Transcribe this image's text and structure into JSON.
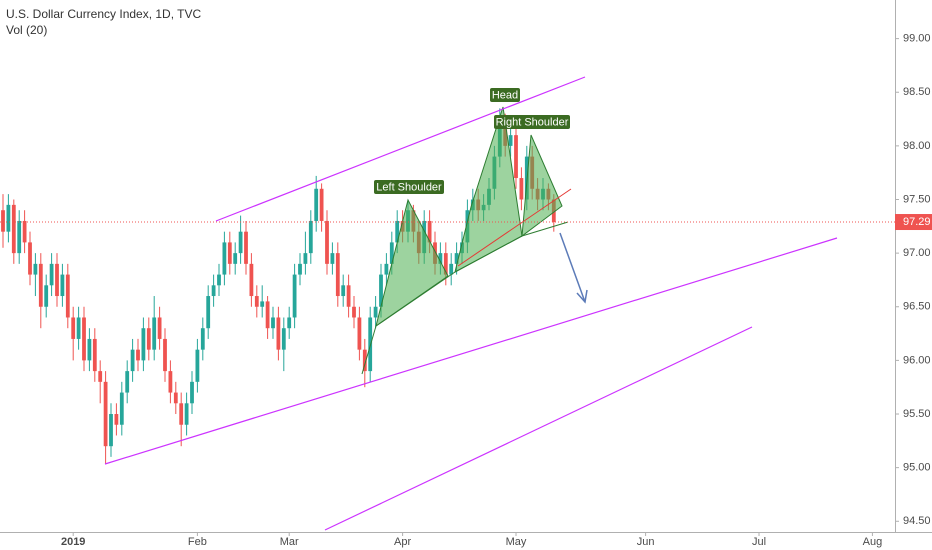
{
  "chart_data": {
    "type": "candlestick",
    "title": "U.S. Dollar Currency Index, 1D, TVC",
    "subtitle": "Vol (20)",
    "up_color": "#26a69a",
    "down_color": "#ef5350",
    "grid": false,
    "ylim": [
      94.4,
      99.36
    ],
    "yticks": [
      {
        "value": 94.5,
        "label": "94.50"
      },
      {
        "value": 95,
        "label": "95.00"
      },
      {
        "value": 95.5,
        "label": "95.50"
      },
      {
        "value": 96,
        "label": "96.00"
      },
      {
        "value": 96.5,
        "label": "96.50"
      },
      {
        "value": 97,
        "label": "97.00"
      },
      {
        "value": 97.5,
        "label": "97.50"
      },
      {
        "value": 98,
        "label": "98.00"
      },
      {
        "value": 98.5,
        "label": "98.50"
      },
      {
        "value": 99,
        "label": "99.00"
      }
    ],
    "last_price": 97.29,
    "annotations": [
      "Left Shoulder",
      "Head",
      "Right Shoulder"
    ],
    "categories": [
      null,
      null,
      null,
      null,
      null,
      null,
      null,
      null,
      null,
      null,
      null,
      null,
      null,
      "2019",
      null,
      null,
      null,
      null,
      null,
      null,
      null,
      null,
      null,
      null,
      null,
      null,
      null,
      null,
      null,
      null,
      null,
      null,
      null,
      null,
      null,
      null,
      "Feb",
      null,
      null,
      null,
      null,
      null,
      null,
      null,
      null,
      null,
      null,
      null,
      null,
      null,
      null,
      null,
      null,
      "Mar",
      null,
      null,
      null,
      null,
      null,
      null,
      null,
      null,
      null,
      null,
      null,
      null,
      null,
      null,
      null,
      null,
      null,
      null,
      null,
      null,
      "Apr",
      null,
      null,
      null,
      null,
      null,
      null,
      null,
      null,
      null,
      null,
      null,
      null,
      null,
      null,
      null,
      null,
      null,
      null,
      null,
      null,
      "May",
      null,
      null,
      null,
      null,
      null,
      null,
      null,
      null,
      null,
      null,
      null,
      null,
      null,
      null,
      null,
      null,
      null,
      null,
      null,
      null,
      null,
      null,
      null,
      "Jun",
      null,
      null,
      null,
      null,
      null,
      null,
      null,
      null,
      null,
      null,
      null,
      null,
      null,
      null,
      null,
      null,
      null,
      null,
      null,
      null,
      "Jul",
      null,
      null,
      null,
      null,
      null,
      null,
      null,
      null,
      null,
      null,
      null,
      null,
      null,
      null,
      null,
      null,
      null,
      null,
      null,
      null,
      "Aug",
      null,
      null,
      null
    ],
    "open": [
      97.4,
      97.2,
      97.45,
      97,
      97.3,
      97.1,
      96.8,
      96.9,
      96.5,
      96.7,
      96.9,
      96.6,
      96.8,
      96.4,
      96.2,
      96.4,
      96,
      96.2,
      95.9,
      95.8,
      95.2,
      95.5,
      95.4,
      95.7,
      95.9,
      96.1,
      96,
      96.3,
      96.1,
      96.4,
      96.2,
      95.9,
      95.7,
      95.6,
      95.4,
      95.6,
      95.8,
      96.1,
      96.3,
      96.6,
      96.7,
      96.8,
      97.1,
      96.9,
      97,
      97.2,
      96.9,
      96.6,
      96.5,
      96.55,
      96.3,
      96.4,
      96.1,
      96.3,
      96.4,
      96.8,
      96.9,
      97,
      97.3,
      97.6,
      97.3,
      96.9,
      97,
      96.6,
      96.7,
      96.5,
      96.4,
      96.1,
      95.9,
      96.4,
      96.5,
      96.8,
      96.9,
      97.1,
      97.3,
      97.2,
      97.4,
      97.2,
      97,
      97.3,
      97.1,
      96.9,
      97,
      96.8,
      96.9,
      97,
      97.1,
      97.4,
      97.5,
      97.4,
      97.45,
      97.6,
      97.9,
      98.2,
      98,
      98.1,
      97.7,
      97.5,
      97.9,
      97.6,
      97.5,
      97.6,
      97.5,
      null,
      null,
      null,
      null,
      null,
      null,
      null,
      null,
      null,
      null,
      null,
      null,
      null,
      null,
      null,
      null,
      null,
      null,
      null,
      null,
      null,
      null,
      null,
      null,
      null,
      null,
      null,
      null,
      null,
      null,
      null,
      null,
      null,
      null,
      null,
      null,
      null,
      null,
      null,
      null,
      null,
      null,
      null,
      null,
      null,
      null,
      null,
      null,
      null,
      null,
      null,
      null,
      null,
      null,
      null,
      null,
      null,
      null,
      null,
      null,
      null,
      null
    ],
    "high": [
      97.55,
      97.55,
      97.5,
      97.4,
      97.4,
      97.2,
      97,
      97,
      96.8,
      97,
      97,
      96.9,
      96.9,
      96.5,
      96.5,
      96.5,
      96.3,
      96.3,
      96,
      95.9,
      95.6,
      95.6,
      95.8,
      96,
      96.2,
      96.2,
      96.4,
      96.4,
      96.6,
      96.5,
      96.3,
      96,
      95.8,
      95.7,
      95.7,
      95.9,
      96.2,
      96.4,
      96.7,
      96.8,
      96.9,
      97.2,
      97.2,
      97.1,
      97.35,
      97.3,
      97,
      96.7,
      96.7,
      96.6,
      96.5,
      96.5,
      96.4,
      96.5,
      96.9,
      97,
      97.2,
      97.4,
      97.72,
      97.65,
      97.4,
      97.1,
      97.1,
      96.8,
      96.8,
      96.6,
      96.5,
      96.2,
      96.5,
      96.6,
      96.9,
      97,
      97.2,
      97.4,
      97.4,
      97.5,
      97.45,
      97.3,
      97.4,
      97.4,
      97.2,
      97.1,
      97.1,
      97,
      97.1,
      97.2,
      97.5,
      97.6,
      97.6,
      97.55,
      97.7,
      98,
      98.35,
      98.3,
      98.2,
      98.2,
      97.8,
      98,
      98,
      97.7,
      97.7,
      97.65,
      97.55,
      null,
      null,
      null,
      null,
      null,
      null,
      null,
      null,
      null,
      null,
      null,
      null,
      null,
      null,
      null,
      null,
      null,
      null,
      null,
      null,
      null,
      null,
      null,
      null,
      null,
      null,
      null,
      null,
      null,
      null,
      null,
      null,
      null,
      null,
      null,
      null,
      null,
      null,
      null,
      null,
      null,
      null,
      null,
      null,
      null,
      null,
      null,
      null,
      null,
      null,
      null,
      null,
      null,
      null,
      null,
      null,
      null,
      null,
      null,
      null,
      null,
      null
    ],
    "low": [
      97.05,
      97.1,
      96.9,
      96.9,
      97,
      96.7,
      96.6,
      96.3,
      96.4,
      96.6,
      96.5,
      96.5,
      96.3,
      96,
      96.1,
      95.9,
      95.9,
      95.8,
      95.6,
      95.03,
      95.1,
      95.3,
      95.3,
      95.6,
      95.8,
      95.9,
      95.9,
      96,
      96,
      96.1,
      95.8,
      95.6,
      95.5,
      95.2,
      95.3,
      95.5,
      95.7,
      96,
      96.2,
      96.5,
      96.6,
      96.7,
      96.8,
      96.8,
      96.9,
      96.8,
      96.5,
      96.4,
      96.4,
      96.2,
      96.2,
      96,
      95.9,
      96.2,
      96.3,
      96.7,
      96.8,
      96.9,
      97.2,
      97.2,
      96.8,
      96.8,
      96.5,
      96.5,
      96.4,
      96.3,
      96,
      95.75,
      95.8,
      96.3,
      96.4,
      96.7,
      96.8,
      97,
      97.1,
      97.1,
      97.1,
      96.9,
      96.9,
      97,
      96.8,
      96.8,
      96.7,
      96.7,
      96.8,
      96.9,
      97,
      97.3,
      97.3,
      97.3,
      97.4,
      97.5,
      97.8,
      97.9,
      97.9,
      97.6,
      97.4,
      97.4,
      97.5,
      97.4,
      97.4,
      97.4,
      97.2,
      null,
      null,
      null,
      null,
      null,
      null,
      null,
      null,
      null,
      null,
      null,
      null,
      null,
      null,
      null,
      null,
      null,
      null,
      null,
      null,
      null,
      null,
      null,
      null,
      null,
      null,
      null,
      null,
      null,
      null,
      null,
      null,
      null,
      null,
      null,
      null,
      null,
      null,
      null,
      null,
      null,
      null,
      null,
      null,
      null,
      null,
      null,
      null,
      null,
      null,
      null,
      null,
      null,
      null,
      null,
      null,
      null,
      null,
      null,
      null,
      null,
      null
    ],
    "close": [
      97.2,
      97.45,
      97,
      97.3,
      97.1,
      96.8,
      96.9,
      96.5,
      96.7,
      96.9,
      96.6,
      96.8,
      96.4,
      96.2,
      96.4,
      96,
      96.2,
      95.9,
      95.8,
      95.2,
      95.5,
      95.4,
      95.7,
      95.9,
      96.1,
      96,
      96.3,
      96.1,
      96.4,
      96.2,
      95.9,
      95.7,
      95.6,
      95.4,
      95.6,
      95.8,
      96.1,
      96.3,
      96.6,
      96.7,
      96.8,
      97.1,
      96.9,
      97,
      97.2,
      96.9,
      96.6,
      96.5,
      96.55,
      96.3,
      96.4,
      96.1,
      96.3,
      96.4,
      96.8,
      96.9,
      97,
      97.3,
      97.6,
      97.3,
      96.9,
      97,
      96.6,
      96.7,
      96.5,
      96.4,
      96.1,
      95.9,
      96.4,
      96.5,
      96.8,
      96.9,
      97.1,
      97.3,
      97.2,
      97.4,
      97.2,
      97,
      97.3,
      97.1,
      96.9,
      97,
      96.8,
      96.9,
      97,
      97.1,
      97.4,
      97.5,
      97.4,
      97.45,
      97.6,
      97.9,
      98.2,
      98,
      98.1,
      97.7,
      97.5,
      97.9,
      97.6,
      97.5,
      97.6,
      97.5,
      97.29,
      null,
      null,
      null,
      null,
      null,
      null,
      null,
      null,
      null,
      null,
      null,
      null,
      null,
      null,
      null,
      null,
      null,
      null,
      null,
      null,
      null,
      null,
      null,
      null,
      null,
      null,
      null,
      null,
      null,
      null,
      null,
      null,
      null,
      null,
      null,
      null,
      null,
      null,
      null,
      null,
      null,
      null,
      null,
      null,
      null,
      null,
      null,
      null,
      null,
      null,
      null,
      null,
      null,
      null,
      null,
      null,
      null,
      null,
      null,
      null,
      null,
      null
    ]
  }
}
